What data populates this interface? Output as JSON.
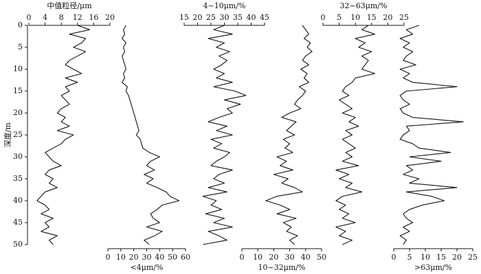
{
  "chart_data": {
    "type": "profile",
    "ylabel": "深度/m",
    "ylim": [
      0,
      50
    ],
    "yticks": [
      0,
      5,
      10,
      15,
      20,
      25,
      30,
      35,
      40,
      45,
      50
    ],
    "depth": [
      0,
      1,
      2,
      3,
      4,
      5,
      6,
      7,
      8,
      9,
      10,
      11,
      12,
      13,
      14,
      15,
      16,
      17,
      18,
      19,
      20,
      21,
      22,
      23,
      24,
      25,
      26,
      27,
      28,
      29,
      30,
      31,
      32,
      33,
      34,
      35,
      36,
      37,
      38,
      39,
      40,
      41,
      42,
      43,
      44,
      45,
      46,
      47,
      48,
      49,
      50
    ],
    "color": "#111111",
    "panels": [
      {
        "label": "中值粒径/μm",
        "axis_position": "top",
        "xlim": [
          0,
          20
        ],
        "xticks": [
          0,
          4,
          8,
          12,
          16,
          20
        ],
        "values": [
          12,
          15,
          10,
          14,
          13,
          11,
          14,
          12,
          10,
          9,
          11,
          13,
          9,
          12,
          9,
          10,
          8,
          9,
          10,
          8,
          7,
          9,
          8,
          10,
          7,
          11,
          9,
          8,
          6,
          4,
          5,
          6,
          8,
          5,
          4,
          6,
          5,
          7,
          4,
          3,
          2,
          4,
          5,
          3,
          6,
          4,
          5,
          3,
          7,
          5,
          6
        ]
      },
      {
        "label": "<4μm/%",
        "axis_position": "bottom",
        "xlim": [
          0,
          60
        ],
        "xticks": [
          0,
          10,
          20,
          30,
          40,
          50,
          60
        ],
        "values": [
          14,
          12,
          13,
          11,
          14,
          12,
          13,
          11,
          12,
          13,
          14,
          12,
          13,
          11,
          15,
          14,
          16,
          17,
          18,
          19,
          20,
          21,
          22,
          23,
          24,
          22,
          25,
          26,
          27,
          32,
          40,
          33,
          30,
          36,
          28,
          35,
          30,
          38,
          45,
          48,
          55,
          42,
          38,
          33,
          35,
          40,
          30,
          42,
          36,
          28,
          32
        ]
      },
      {
        "label": "4~10μm/%",
        "axis_position": "top",
        "xlim": [
          15,
          45
        ],
        "xticks": [
          15,
          20,
          25,
          30,
          35,
          40,
          45
        ],
        "values": [
          30,
          26,
          33,
          24,
          30,
          27,
          32,
          28,
          31,
          29,
          26,
          30,
          27,
          33,
          26,
          34,
          38,
          30,
          36,
          31,
          33,
          28,
          24,
          31,
          27,
          33,
          25,
          29,
          26,
          32,
          30,
          27,
          25,
          33,
          28,
          26,
          30,
          24,
          31,
          22,
          27,
          25,
          29,
          23,
          30,
          26,
          33,
          24,
          28,
          31,
          22
        ]
      },
      {
        "label": "10~32μm/%",
        "axis_position": "bottom",
        "xlim": [
          0,
          50
        ],
        "xticks": [
          0,
          10,
          20,
          30,
          40,
          50
        ],
        "values": [
          38,
          40,
          42,
          39,
          43,
          41,
          44,
          40,
          38,
          42,
          37,
          41,
          39,
          42,
          36,
          40,
          38,
          35,
          33,
          37,
          30,
          25,
          34,
          31,
          28,
          33,
          26,
          30,
          27,
          32,
          22,
          28,
          24,
          32,
          20,
          29,
          25,
          33,
          38,
          22,
          15,
          24,
          30,
          22,
          34,
          26,
          31,
          28,
          35,
          30,
          33
        ]
      },
      {
        "label": "32~63μm/%",
        "axis_position": "top",
        "xlim": [
          0,
          25
        ],
        "xticks": [
          0,
          5,
          10,
          15,
          20,
          25
        ],
        "values": [
          14,
          12,
          16,
          10,
          13,
          11,
          15,
          12,
          14,
          13,
          12,
          16,
          10,
          9,
          7,
          6,
          8,
          5,
          7,
          9,
          6,
          10,
          8,
          11,
          7,
          9,
          6,
          8,
          10,
          7,
          9,
          6,
          11,
          4,
          8,
          5,
          9,
          7,
          12,
          6,
          4,
          7,
          5,
          8,
          6,
          10,
          4,
          7,
          5,
          9,
          6
        ]
      },
      {
        "label": ">63μm/%",
        "axis_position": "bottom",
        "xlim": [
          0,
          25
        ],
        "xticks": [
          0,
          5,
          10,
          15,
          20,
          25
        ],
        "values": [
          8,
          4,
          6,
          2,
          5,
          3,
          6,
          4,
          3,
          7,
          2,
          5,
          3,
          6,
          20,
          4,
          2,
          3,
          5,
          2,
          3,
          6,
          22,
          4,
          5,
          3,
          2,
          6,
          8,
          18,
          5,
          15,
          4,
          6,
          3,
          8,
          5,
          20,
          4,
          12,
          16,
          9,
          5,
          3,
          4,
          6,
          3,
          5,
          2,
          4,
          3
        ]
      }
    ]
  }
}
